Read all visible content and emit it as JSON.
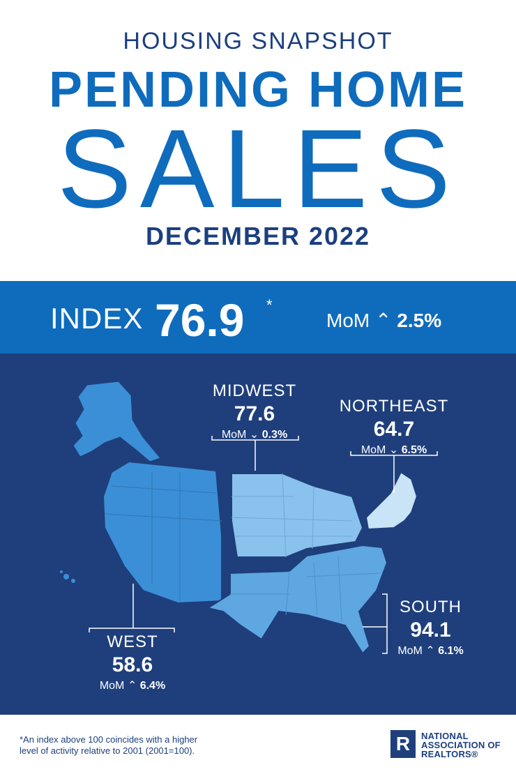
{
  "header": {
    "kicker": "HOUSING SNAPSHOT",
    "title_line1": "PENDING HOME",
    "title_line2": "SALES",
    "period": "DECEMBER 2022"
  },
  "index": {
    "label": "INDEX",
    "value": "76.9",
    "footnote_mark": "*",
    "mom_label": "MoM",
    "mom_direction": "up",
    "mom_change": "2.5%"
  },
  "regions": {
    "midwest": {
      "name": "MIDWEST",
      "value": "77.6",
      "mom_label": "MoM",
      "mom_direction": "down",
      "mom_change": "0.3%"
    },
    "northeast": {
      "name": "NORTHEAST",
      "value": "64.7",
      "mom_label": "MoM",
      "mom_direction": "down",
      "mom_change": "6.5%"
    },
    "south": {
      "name": "SOUTH",
      "value": "94.1",
      "mom_label": "MoM",
      "mom_direction": "up",
      "mom_change": "6.1%"
    },
    "west": {
      "name": "WEST",
      "value": "58.6",
      "mom_label": "MoM",
      "mom_direction": "up",
      "mom_change": "6.4%"
    }
  },
  "footer": {
    "footnote_line1": "*An index above 100 coincides with a higher",
    "footnote_line2": "level of activity relative to 2001 (2001=100).",
    "logo_letter": "R",
    "logo_line1": "NATIONAL",
    "logo_line2": "ASSOCIATION OF",
    "logo_line3": "REALTORS®"
  },
  "colors": {
    "brand_blue": "#0f6cbd",
    "navy": "#1f3f7c",
    "west": "#3b8fd6",
    "midwest": "#89c2ec",
    "northeast": "#c9e3f7",
    "south": "#5ea7e0"
  }
}
